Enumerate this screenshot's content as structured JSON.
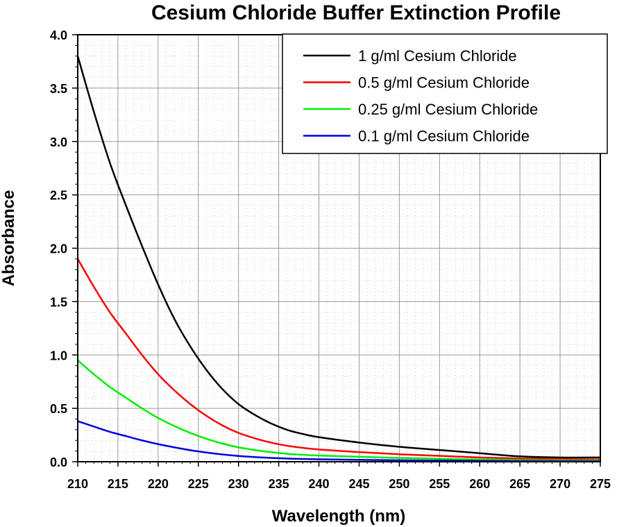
{
  "chart_data": {
    "type": "line",
    "title": "Cesium Chloride Buffer Extinction Profile",
    "xlabel": "Wavelength (nm)",
    "ylabel": "Absorbance",
    "xlim": [
      210,
      275
    ],
    "ylim": [
      0,
      4
    ],
    "xticks": [
      "210",
      "215",
      "220",
      "225",
      "230",
      "235",
      "240",
      "245",
      "250",
      "255",
      "260",
      "265",
      "270",
      "275"
    ],
    "yticks": [
      "0.0",
      "0.5",
      "1.0",
      "1.5",
      "2.0",
      "2.5",
      "3.0",
      "3.5",
      "4.0"
    ],
    "grid": true,
    "legend_position": "top-right",
    "x": [
      210,
      212,
      214,
      216,
      218,
      220,
      222,
      224,
      226,
      228,
      230,
      232,
      234,
      236,
      238,
      240,
      245,
      250,
      255,
      260,
      265,
      270,
      275
    ],
    "series": [
      {
        "name": "1 g/ml Cesium Chloride",
        "color": "#000000",
        "values": [
          3.8,
          3.28,
          2.8,
          2.4,
          2.02,
          1.66,
          1.34,
          1.08,
          0.86,
          0.68,
          0.54,
          0.44,
          0.36,
          0.3,
          0.26,
          0.23,
          0.18,
          0.14,
          0.11,
          0.08,
          0.05,
          0.04,
          0.04
        ]
      },
      {
        "name": "0.5 g/ml Cesium Chloride",
        "color": "#ff0000",
        "values": [
          1.9,
          1.64,
          1.4,
          1.2,
          1.0,
          0.82,
          0.67,
          0.54,
          0.43,
          0.34,
          0.27,
          0.22,
          0.18,
          0.15,
          0.13,
          0.115,
          0.09,
          0.07,
          0.055,
          0.04,
          0.03,
          0.025,
          0.02
        ]
      },
      {
        "name": "0.25 g/ml Cesium Chloride",
        "color": "#00ee00",
        "values": [
          0.95,
          0.82,
          0.7,
          0.6,
          0.5,
          0.41,
          0.335,
          0.27,
          0.215,
          0.17,
          0.135,
          0.11,
          0.09,
          0.075,
          0.065,
          0.058,
          0.046,
          0.036,
          0.028,
          0.02,
          0.016,
          0.013,
          0.011
        ]
      },
      {
        "name": "0.1 g/ml Cesium Chloride",
        "color": "#0000dd",
        "values": [
          0.38,
          0.33,
          0.28,
          0.24,
          0.2,
          0.165,
          0.135,
          0.108,
          0.086,
          0.068,
          0.054,
          0.044,
          0.036,
          0.03,
          0.026,
          0.023,
          0.018,
          0.014,
          0.011,
          0.008,
          0.006,
          0.005,
          0.004
        ]
      }
    ]
  }
}
